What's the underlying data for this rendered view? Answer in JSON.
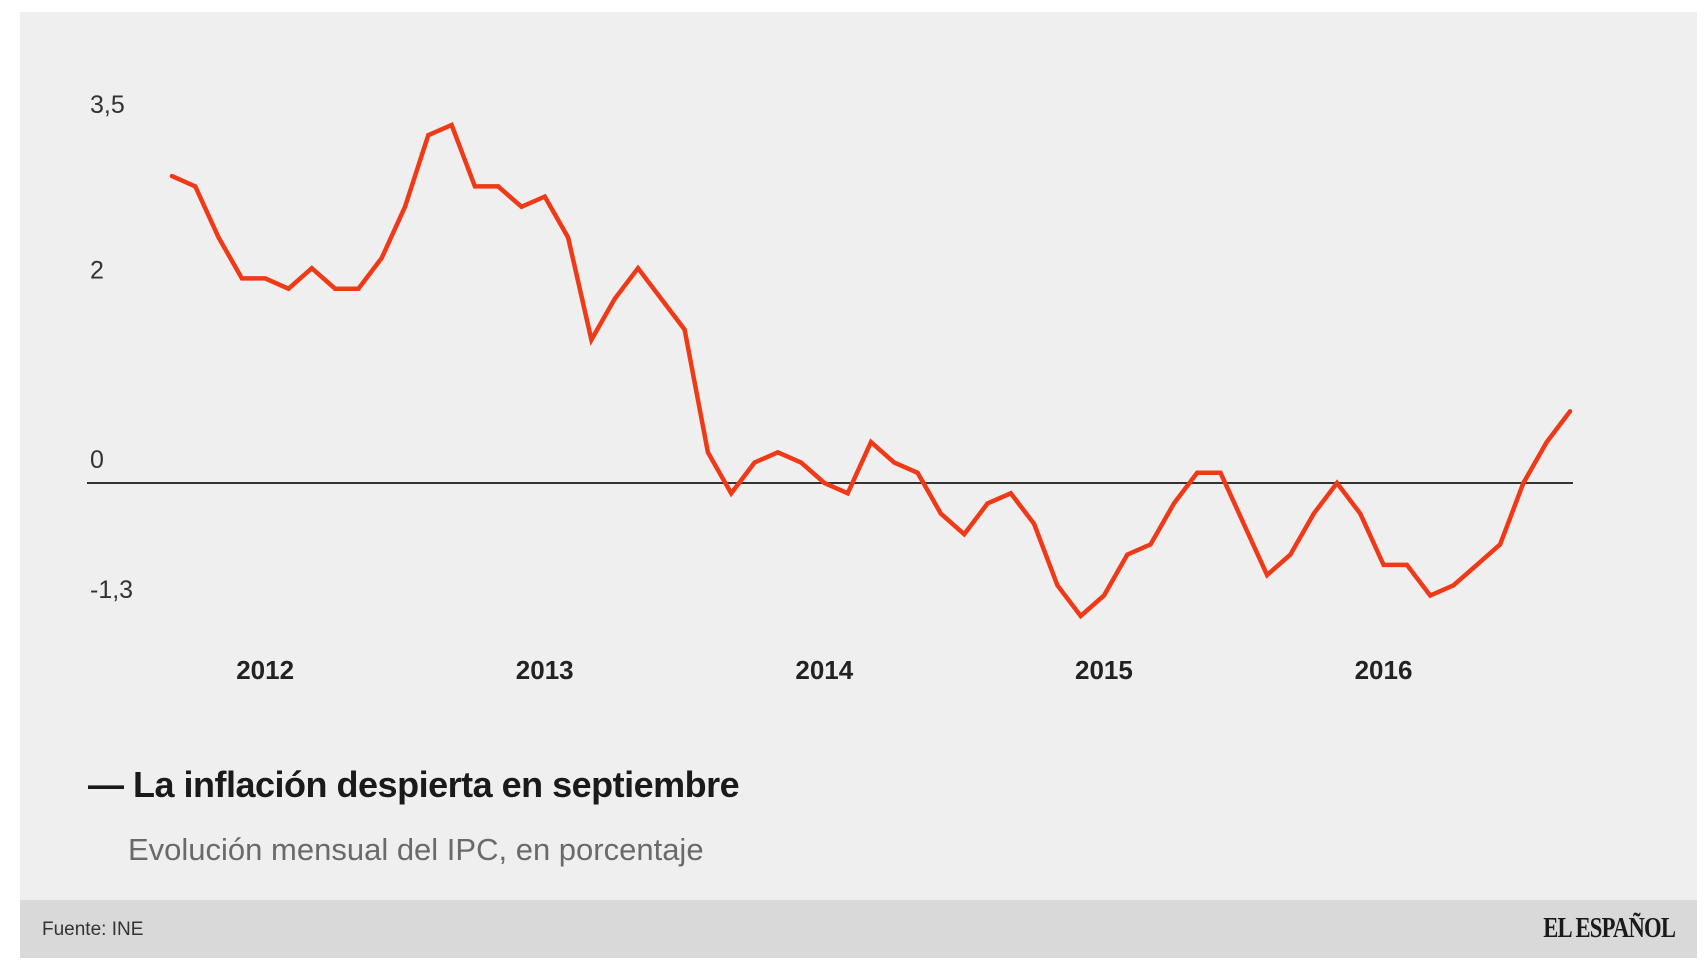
{
  "chart_data": {
    "type": "line",
    "title": "La inflación despierta en septiembre",
    "subtitle": "Evolución mensual del IPC, en porcentaje",
    "legend_marker": "—",
    "ylim": [
      -1.3,
      3.5
    ],
    "yticks": [
      {
        "value": 3.5,
        "label": "3,5"
      },
      {
        "value": 2,
        "label": "2"
      },
      {
        "value": 0,
        "label": "0"
      },
      {
        "value": -1.3,
        "label": "-1,3"
      }
    ],
    "xticks": [
      "2012",
      "2013",
      "2014",
      "2015",
      "2016"
    ],
    "x_start": "2011-09",
    "color": "#f03a17",
    "series": [
      {
        "values": [
          3.0,
          2.9,
          2.4,
          2.0,
          2.0,
          1.9,
          2.1,
          1.9,
          1.9,
          2.2,
          2.7,
          3.4,
          3.5,
          2.9,
          2.9,
          2.7,
          2.8,
          2.4,
          1.4,
          1.8,
          2.1,
          1.8,
          1.5,
          0.3,
          -0.1,
          0.2,
          0.3,
          0.2,
          0.0,
          -0.1,
          0.4,
          0.2,
          0.1,
          -0.3,
          -0.5,
          -0.2,
          -0.1,
          -0.4,
          -1.0,
          -1.3,
          -1.1,
          -0.7,
          -0.6,
          -0.2,
          0.1,
          0.1,
          -0.4,
          -0.9,
          -0.7,
          -0.3,
          0.0,
          -0.3,
          -0.8,
          -0.8,
          -1.1,
          -1.0,
          -0.8,
          -0.6,
          0.0,
          0.4,
          0.7
        ]
      }
    ],
    "grid": false,
    "zero_line": true
  },
  "footer": {
    "source": "Fuente: INE",
    "brand": "EL ESPAÑOL"
  }
}
